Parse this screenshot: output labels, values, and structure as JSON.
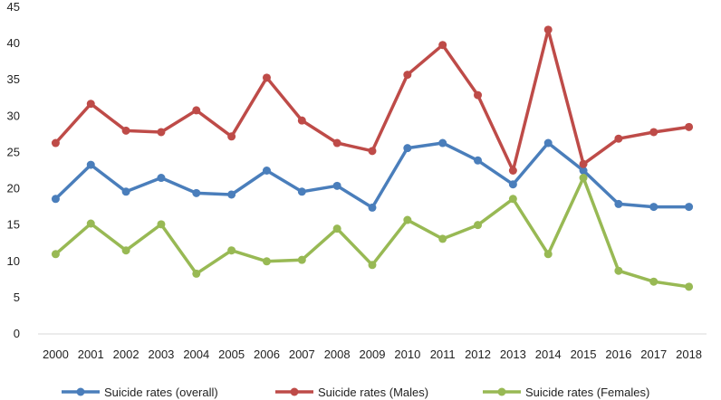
{
  "chart_data": {
    "type": "line",
    "title": "",
    "xlabel": "",
    "ylabel": "",
    "ylim": [
      0,
      45
    ],
    "y_ticks": [
      0,
      5,
      10,
      15,
      20,
      25,
      30,
      35,
      40,
      45
    ],
    "categories": [
      "2000",
      "2001",
      "2002",
      "2003",
      "2004",
      "2005",
      "2006",
      "2007",
      "2008",
      "2009",
      "2010",
      "2011",
      "2012",
      "2013",
      "2014",
      "2015",
      "2016",
      "2017",
      "2018"
    ],
    "grid": false,
    "legend_position": "bottom",
    "series": [
      {
        "name": "Suicide rates (overall)",
        "color": "#4a7ebb",
        "values": [
          18.6,
          23.3,
          19.6,
          21.5,
          19.4,
          19.2,
          22.5,
          19.6,
          20.4,
          17.4,
          25.6,
          26.3,
          23.9,
          20.6,
          26.3,
          22.5,
          17.9,
          17.5,
          17.5
        ]
      },
      {
        "name": "Suicide rates (Males)",
        "color": "#be4b48",
        "values": [
          26.3,
          31.7,
          28.0,
          27.8,
          30.8,
          27.2,
          35.3,
          29.4,
          26.3,
          25.2,
          35.7,
          39.8,
          32.9,
          22.5,
          41.9,
          23.4,
          26.9,
          27.8,
          28.5
        ]
      },
      {
        "name": "Suicide rates (Females)",
        "color": "#98b954",
        "values": [
          11.0,
          15.2,
          11.5,
          15.1,
          8.3,
          11.5,
          10.0,
          10.2,
          14.5,
          9.5,
          15.7,
          13.1,
          15.0,
          18.6,
          11.0,
          21.5,
          8.7,
          7.2,
          6.5
        ]
      }
    ]
  }
}
